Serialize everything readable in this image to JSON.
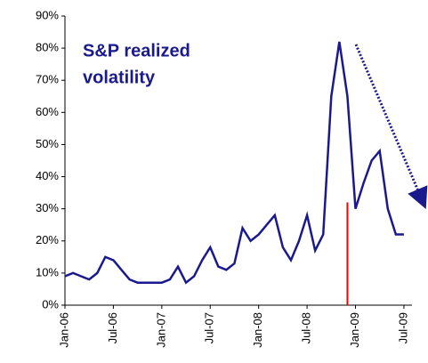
{
  "chart_data": {
    "type": "line",
    "annotation": [
      "S&P realized",
      "volatility"
    ],
    "x": [
      "2006-01",
      "2006-02",
      "2006-03",
      "2006-04",
      "2006-05",
      "2006-06",
      "2006-07",
      "2006-08",
      "2006-09",
      "2006-10",
      "2006-11",
      "2006-12",
      "2007-01",
      "2007-02",
      "2007-03",
      "2007-04",
      "2007-05",
      "2007-06",
      "2007-07",
      "2007-08",
      "2007-09",
      "2007-10",
      "2007-11",
      "2007-12",
      "2008-01",
      "2008-02",
      "2008-03",
      "2008-04",
      "2008-05",
      "2008-06",
      "2008-07",
      "2008-08",
      "2008-09",
      "2008-10",
      "2008-11",
      "2008-12",
      "2009-01",
      "2009-02",
      "2009-03",
      "2009-04",
      "2009-05",
      "2009-06",
      "2009-07"
    ],
    "series": [
      {
        "name": "S&P realized volatility",
        "color": "#1a1a8c",
        "values": [
          9,
          10,
          9,
          8,
          10,
          15,
          14,
          11,
          8,
          7,
          7,
          7,
          7,
          8,
          12,
          7,
          9,
          14,
          18,
          12,
          11,
          13,
          24,
          20,
          22,
          25,
          28,
          18,
          14,
          20,
          28,
          17,
          22,
          65,
          82,
          65,
          30,
          38,
          45,
          48,
          30,
          22,
          22
        ]
      }
    ],
    "marker": {
      "x": "2008-12",
      "top": 32,
      "color": "#ff0000"
    },
    "xlim": [
      "2006-01",
      "2009-08"
    ],
    "xticks": [
      {
        "value": "2006-01",
        "label": "Jan-06"
      },
      {
        "value": "2006-07",
        "label": "Jul-06"
      },
      {
        "value": "2007-01",
        "label": "Jan-07"
      },
      {
        "value": "2007-07",
        "label": "Jul-07"
      },
      {
        "value": "2008-01",
        "label": "Jan-08"
      },
      {
        "value": "2008-07",
        "label": "Jul-08"
      },
      {
        "value": "2009-01",
        "label": "Jan-09"
      },
      {
        "value": "2009-07",
        "label": "Jul-09"
      }
    ],
    "ylim": [
      0,
      90
    ],
    "yticks": [
      {
        "value": 0,
        "label": "0%"
      },
      {
        "value": 10,
        "label": "10%"
      },
      {
        "value": 20,
        "label": "20%"
      },
      {
        "value": 30,
        "label": "30%"
      },
      {
        "value": 40,
        "label": "40%"
      },
      {
        "value": 50,
        "label": "50%"
      },
      {
        "value": 60,
        "label": "60%"
      },
      {
        "value": 70,
        "label": "70%"
      },
      {
        "value": 80,
        "label": "80%"
      },
      {
        "value": 90,
        "label": "90%"
      }
    ]
  }
}
